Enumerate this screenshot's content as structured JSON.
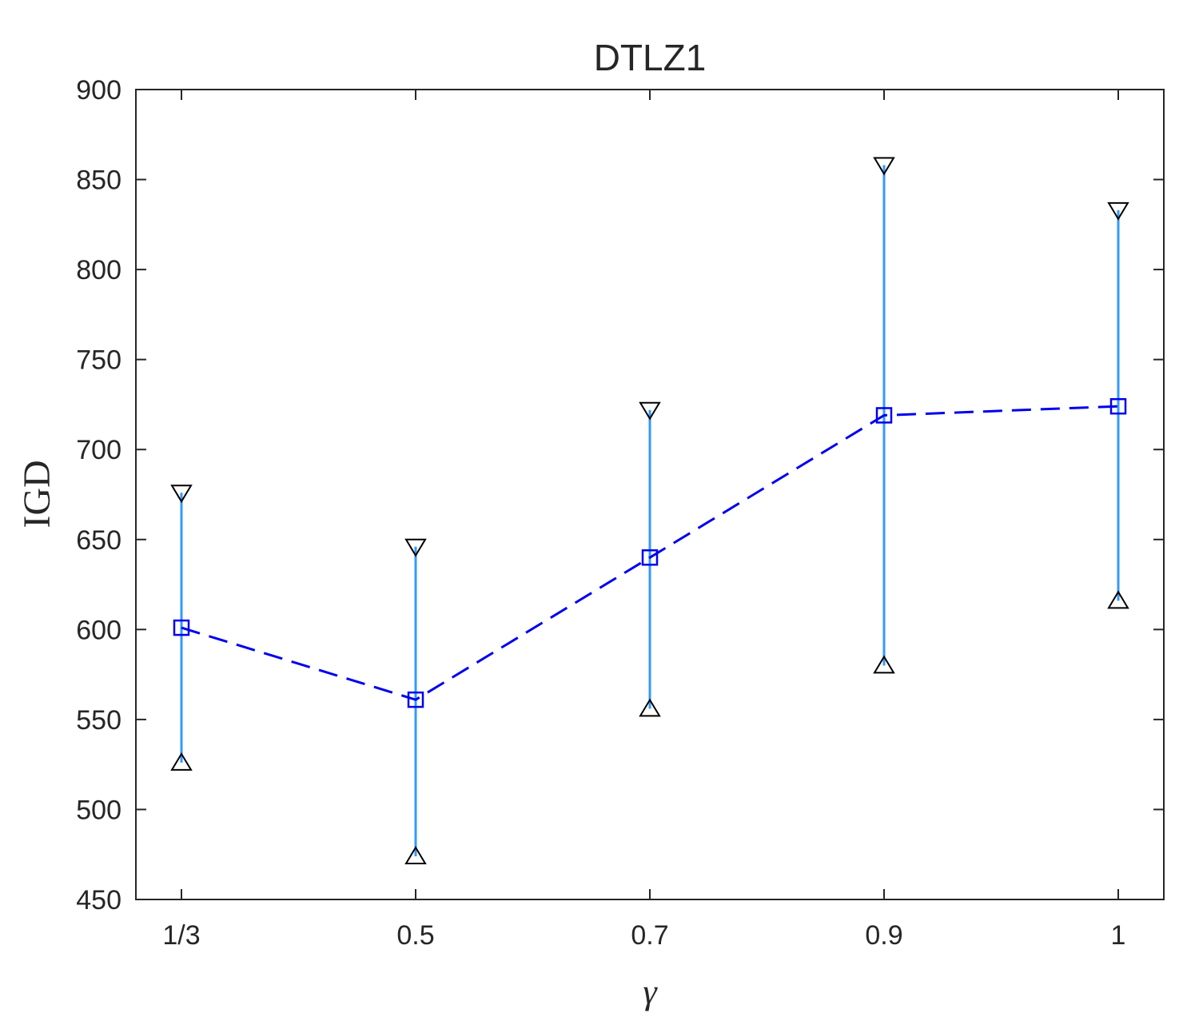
{
  "chart_data": {
    "type": "line",
    "title": "DTLZ1",
    "xlabel": "γ",
    "ylabel": "IGD",
    "categories": [
      "1/3",
      "0.5",
      "0.7",
      "0.9",
      "1"
    ],
    "x": [
      0.3333,
      0.5,
      0.7,
      0.9,
      1
    ],
    "xlim": [
      0.3,
      1.04
    ],
    "ylim": [
      450,
      900
    ],
    "yticks": [
      450,
      500,
      550,
      600,
      650,
      700,
      750,
      800,
      850,
      900
    ],
    "grid": false,
    "series": [
      {
        "values": [
          601,
          561,
          640,
          719,
          724
        ],
        "upper": [
          676,
          646,
          722,
          858,
          833
        ],
        "lower": [
          526,
          474,
          556,
          580,
          616
        ],
        "line_color": "#0000ee",
        "error_color": "#3399ff",
        "marker": "square"
      }
    ]
  }
}
